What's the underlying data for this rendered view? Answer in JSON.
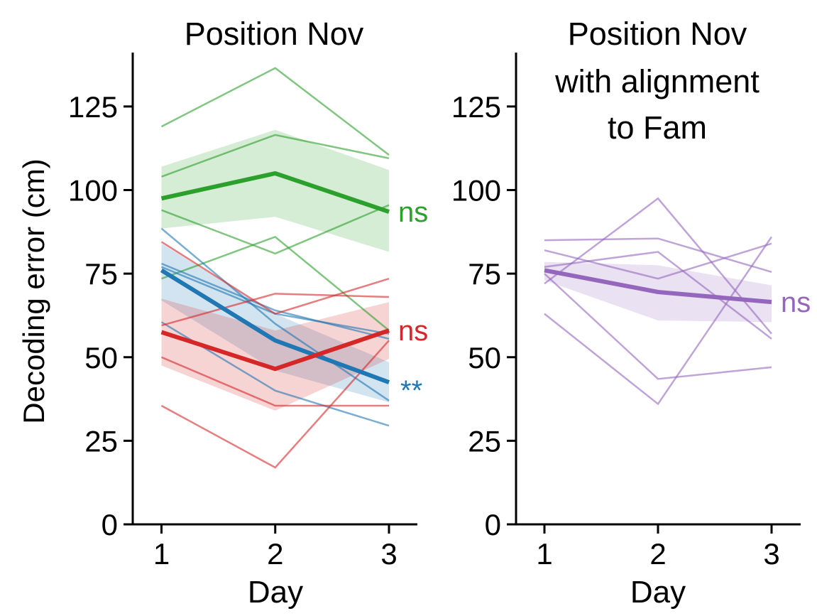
{
  "figure": {
    "ylabel": "Decoding error (cm)"
  },
  "chart_data": [
    {
      "type": "line",
      "title": [
        "Position Nov"
      ],
      "xlabel": "Day",
      "ylabel": "Decoding error (cm)",
      "x": [
        1,
        2,
        3
      ],
      "xticks": [
        "1",
        "2",
        "3"
      ],
      "yticks": [
        "0",
        "25",
        "50",
        "75",
        "100",
        "125"
      ],
      "xlim": [
        0.75,
        3.25
      ],
      "ylim": [
        0,
        140
      ],
      "groups": [
        {
          "name": "green",
          "color": "#2ca02c",
          "mean": [
            97.5,
            105,
            93.5
          ],
          "band_lower": [
            88.5,
            92,
            81.5
          ],
          "band_upper": [
            107,
            118,
            106
          ],
          "individual": [
            [
              119,
              136.5,
              110.5
            ],
            [
              104,
              116.5,
              109.5
            ],
            [
              94,
              81,
              95.5
            ],
            [
              73.5,
              86,
              58
            ]
          ],
          "significance": "ns"
        },
        {
          "name": "blue",
          "color": "#1f77b4",
          "mean": [
            76,
            55,
            42.5
          ],
          "band_lower": [
            67,
            46,
            36.5
          ],
          "band_upper": [
            84,
            63,
            48.5
          ],
          "individual": [
            [
              88.5,
              60,
              37
            ],
            [
              78,
              64,
              55.5
            ],
            [
              60.5,
              40,
              29.5
            ],
            [
              77,
              63,
              57
            ]
          ],
          "significance": "**"
        },
        {
          "name": "red",
          "color": "#d62728",
          "mean": [
            57.5,
            46.5,
            58
          ],
          "band_lower": [
            47.5,
            34,
            49.5
          ],
          "band_upper": [
            67.5,
            58,
            66.5
          ],
          "individual": [
            [
              84.5,
              63,
              73.5
            ],
            [
              59.5,
              69,
              68
            ],
            [
              50,
              35.5,
              35.5
            ],
            [
              35.5,
              17,
              55
            ]
          ],
          "significance": "ns"
        }
      ]
    },
    {
      "type": "line",
      "title": [
        "Position Nov",
        "with alignment",
        "to Fam"
      ],
      "xlabel": "Day",
      "ylabel": "",
      "x": [
        1,
        2,
        3
      ],
      "xticks": [
        "1",
        "2",
        "3"
      ],
      "yticks": [
        "0",
        "25",
        "50",
        "75",
        "100",
        "125"
      ],
      "xlim": [
        0.75,
        3.25
      ],
      "ylim": [
        0,
        140
      ],
      "groups": [
        {
          "name": "purple",
          "color": "#9467bd",
          "mean": [
            76,
            69.5,
            66.5
          ],
          "band_lower": [
            73,
            61,
            60.5
          ],
          "band_upper": [
            78.5,
            77.5,
            71.5
          ],
          "individual": [
            [
              85,
              85.5,
              75.5
            ],
            [
              82,
              73.5,
              84
            ],
            [
              72,
              97.5,
              57
            ],
            [
              77,
              81.5,
              55.5
            ],
            [
              63,
              36,
              86
            ],
            [
              75,
              43.5,
              47
            ]
          ],
          "significance": "ns"
        }
      ]
    }
  ]
}
